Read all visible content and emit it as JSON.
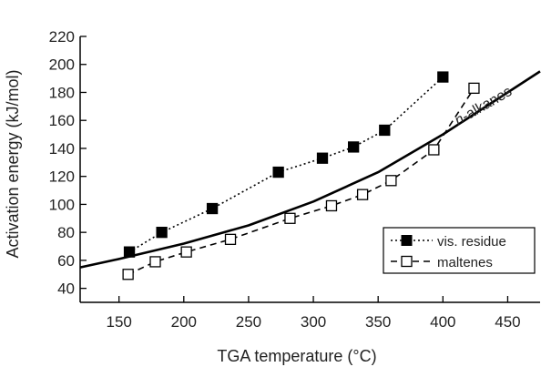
{
  "chart_data": {
    "type": "scatter",
    "title": "",
    "xlabel": "TGA temperature (°C)",
    "ylabel": "Activation energy (kJ/mol)",
    "xlim": [
      120,
      475
    ],
    "ylim": [
      30,
      220
    ],
    "x_ticks": [
      150,
      200,
      250,
      300,
      350,
      400,
      450
    ],
    "y_ticks": [
      40,
      60,
      80,
      100,
      120,
      140,
      160,
      180,
      200,
      220
    ],
    "grid": false,
    "legend_position": "bottom-right",
    "series": [
      {
        "name": "vis. residue",
        "marker": "filled-square",
        "line": "dotted",
        "points": [
          {
            "x": 158,
            "y": 66
          },
          {
            "x": 183,
            "y": 80
          },
          {
            "x": 222,
            "y": 97
          },
          {
            "x": 273,
            "y": 123
          },
          {
            "x": 307,
            "y": 133
          },
          {
            "x": 331,
            "y": 141
          },
          {
            "x": 355,
            "y": 153
          },
          {
            "x": 400,
            "y": 191
          }
        ]
      },
      {
        "name": "maltenes",
        "marker": "open-square",
        "line": "dashed",
        "points": [
          {
            "x": 157,
            "y": 50
          },
          {
            "x": 178,
            "y": 59
          },
          {
            "x": 202,
            "y": 66
          },
          {
            "x": 236,
            "y": 75
          },
          {
            "x": 282,
            "y": 90
          },
          {
            "x": 314,
            "y": 99
          },
          {
            "x": 338,
            "y": 107
          },
          {
            "x": 360,
            "y": 117
          },
          {
            "x": 393,
            "y": 139
          },
          {
            "x": 424,
            "y": 183
          }
        ]
      }
    ],
    "reference_curve": {
      "label_prefix": "n",
      "label_suffix": "-alkanes",
      "line": "solid",
      "points": [
        {
          "x": 120,
          "y": 55
        },
        {
          "x": 150,
          "y": 61
        },
        {
          "x": 200,
          "y": 72
        },
        {
          "x": 250,
          "y": 85
        },
        {
          "x": 300,
          "y": 102
        },
        {
          "x": 350,
          "y": 123
        },
        {
          "x": 400,
          "y": 150
        },
        {
          "x": 450,
          "y": 180
        },
        {
          "x": 475,
          "y": 195
        }
      ]
    }
  }
}
